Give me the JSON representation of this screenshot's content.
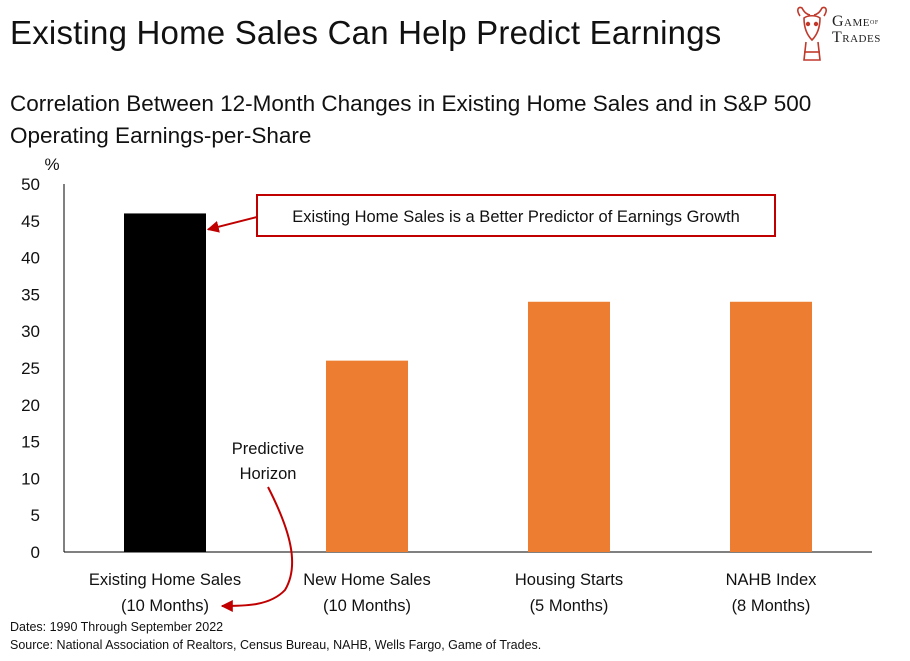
{
  "header": {
    "title": "Existing Home Sales Can Help Predict Earnings",
    "subtitle": "Correlation Between 12-Month Changes in Existing Home Sales and in S&P 500 Operating Earnings-per-Share"
  },
  "logo": {
    "line1": "Game",
    "of": "of",
    "line2": "Trades",
    "icon": "bull-head-icon"
  },
  "chart_data": {
    "type": "bar",
    "categories": [
      "Existing Home Sales",
      "New Home Sales",
      "Housing Starts",
      "NAHB Index"
    ],
    "category_sublabels": [
      "(10 Months)",
      "(10 Months)",
      "(5 Months)",
      "(8 Months)"
    ],
    "values": [
      46,
      26,
      34,
      34
    ],
    "colors": [
      "#000000",
      "#ED7D31",
      "#ED7D31",
      "#ED7D31"
    ],
    "ylabel": "%",
    "ylim": [
      0,
      50
    ],
    "yticks": [
      0,
      5,
      10,
      15,
      20,
      25,
      30,
      35,
      40,
      45,
      50
    ],
    "grid": false,
    "annotations": {
      "callout": "Existing Home Sales is a Better Predictor of Earnings Growth",
      "horizon_line1": "Predictive",
      "horizon_line2": "Horizon",
      "color": "#C00000"
    }
  },
  "footer": {
    "dates": "Dates: 1990 Through  September 2022",
    "source": "Source: National  Association of Realtors, Census Bureau, NAHB, Wells Fargo, Game of Trades."
  }
}
